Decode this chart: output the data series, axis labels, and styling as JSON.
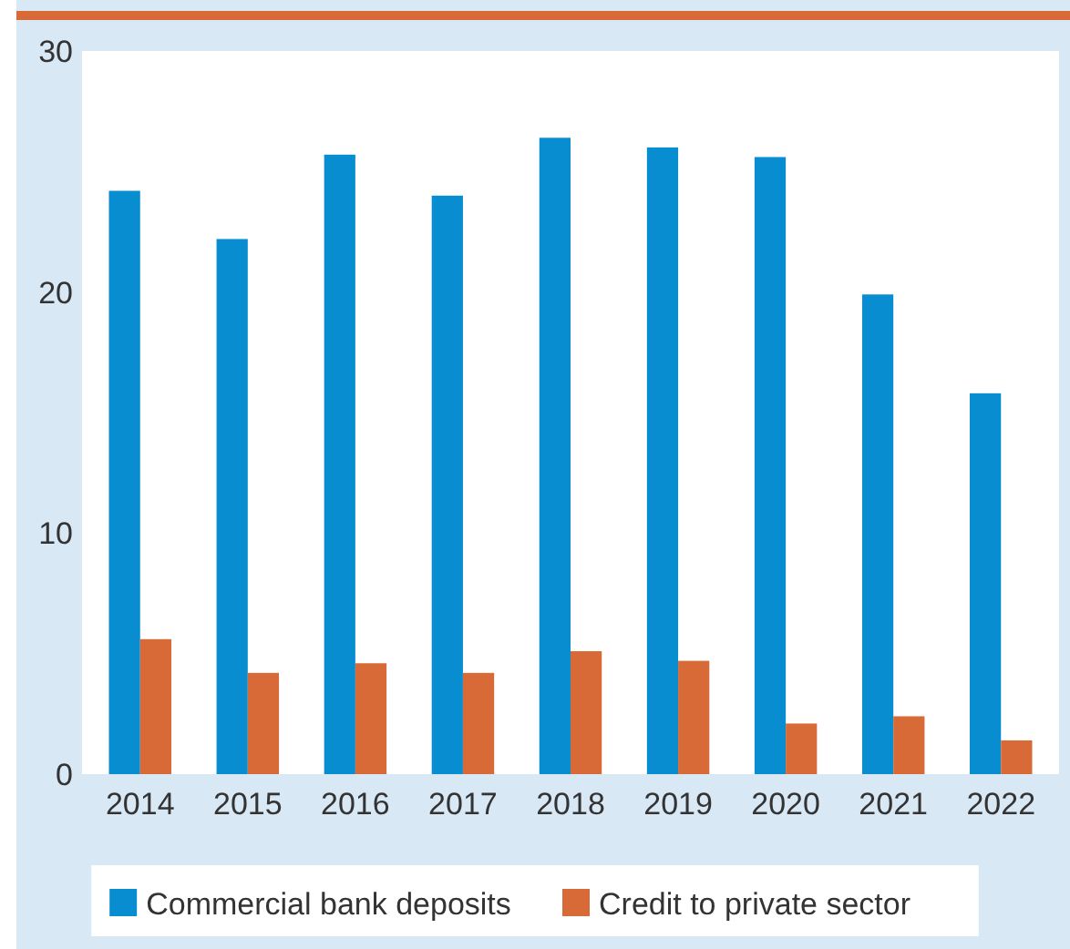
{
  "chart_data": {
    "type": "bar",
    "categories": [
      "2014",
      "2015",
      "2016",
      "2017",
      "2018",
      "2019",
      "2020",
      "2021",
      "2022"
    ],
    "series": [
      {
        "name": "Commercial bank deposits",
        "color": "#078dd0",
        "values": [
          24.2,
          22.2,
          25.7,
          24.0,
          26.4,
          26.0,
          25.6,
          19.9,
          15.8
        ]
      },
      {
        "name": "Credit to private sector",
        "color": "#d86a37",
        "values": [
          5.6,
          4.2,
          4.6,
          4.2,
          5.1,
          4.7,
          2.1,
          2.4,
          1.4
        ]
      }
    ],
    "ylim": [
      0,
      30
    ],
    "yticks": [
      0,
      10,
      20,
      30
    ],
    "grid": false,
    "legend": "bottom"
  }
}
